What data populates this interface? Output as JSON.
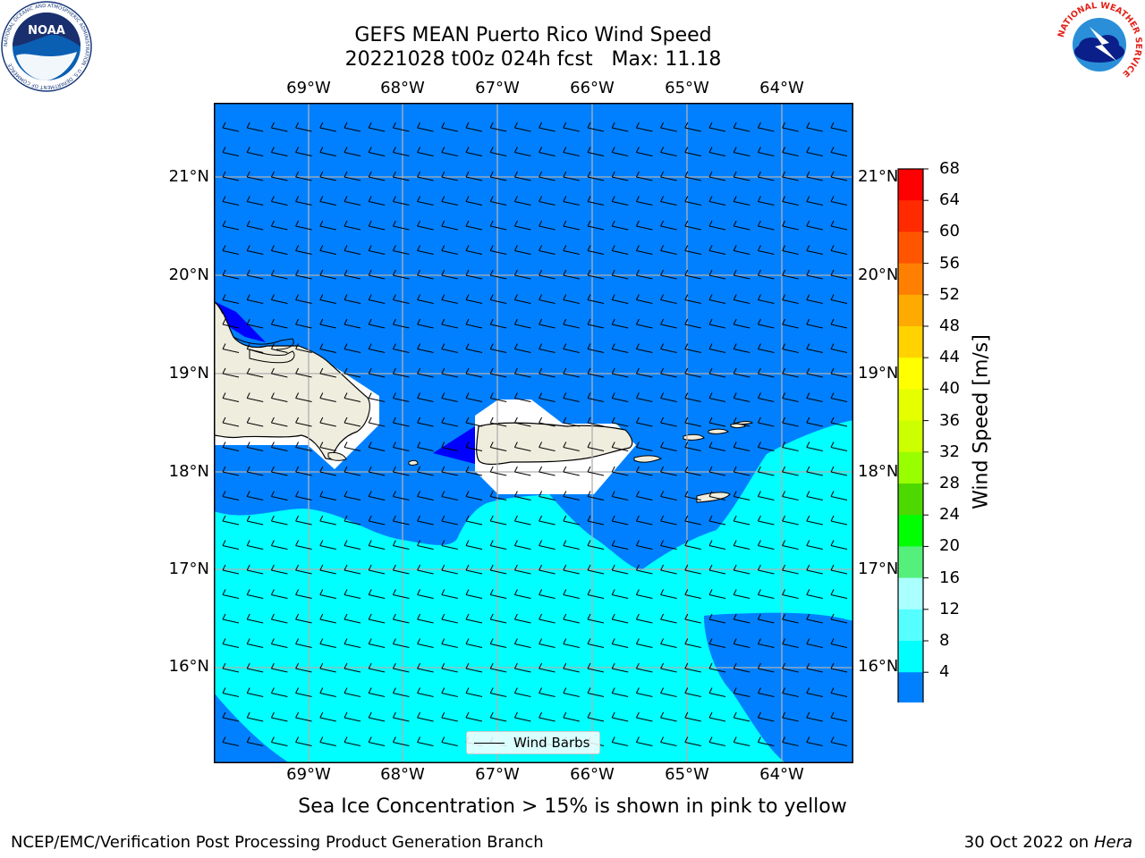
{
  "title_line1": "GEFS MEAN Puerto Rico Wind Speed",
  "title_line2": "20221028 t00z 024h fcst   Max: 11.18",
  "top_longitudes": [
    "69°W",
    "68°W",
    "67°W",
    "66°W",
    "65°W",
    "64°W"
  ],
  "bottom_longitudes": [
    "69°W",
    "68°W",
    "67°W",
    "66°W",
    "65°W",
    "64°W"
  ],
  "left_latitudes": [
    "21°N",
    "20°N",
    "19°N",
    "18°N",
    "17°N",
    "16°N"
  ],
  "right_latitudes": [
    "21°N",
    "20°N",
    "19°N",
    "18°N",
    "17°N",
    "16°N"
  ],
  "colorbar": {
    "label": "Wind Speed [m/s]",
    "ticks": [
      "68",
      "64",
      "60",
      "56",
      "52",
      "48",
      "44",
      "40",
      "36",
      "32",
      "28",
      "24",
      "20",
      "16",
      "12",
      "8",
      "4"
    ],
    "colors": [
      "#ff0000",
      "#ff2a00",
      "#ff5500",
      "#ff8000",
      "#ffaa00",
      "#ffd200",
      "#ffff00",
      "#e6ff00",
      "#ccff00",
      "#99ff00",
      "#4dd900",
      "#00ff00",
      "#55f07c",
      "#aaffff",
      "#55ffff",
      "#00ffff",
      "#0080ff"
    ],
    "extend_color": "#0000ff"
  },
  "legend_label": "Wind Barbs",
  "caption": "Sea Ice Concentration > 15% is shown in pink to yellow",
  "footer_left": "NCEP/EMC/Verification Post Processing Product Generation Branch",
  "footer_right_prefix": "30 Oct 2022 on ",
  "footer_right_machine": "Hera",
  "logo_left_text": "NOAA",
  "logo_left_ring": "NATIONAL OCEANIC AND ATMOSPHERIC ADMINISTRATION · U.S. DEPARTMENT OF COMMERCE",
  "logo_right_ring": "NATIONAL WEATHER SERVICE",
  "colors": {
    "land": "#efedde",
    "ocean_4_8": "#0080ff",
    "ocean_8_12": "#00ffff",
    "ocean_0_4": "#0000ff"
  }
}
